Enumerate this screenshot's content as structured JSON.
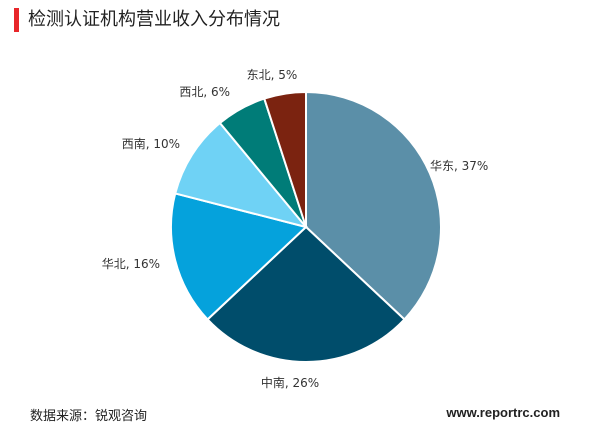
{
  "chart_data": {
    "type": "pie",
    "title": "检测认证机构营业收入分布情况",
    "slices": [
      {
        "name": "华东",
        "value": 37,
        "label": "华东, 37%",
        "color": "#5b8fa8"
      },
      {
        "name": "中南",
        "value": 26,
        "label": "中南, 26%",
        "color": "#004d6b"
      },
      {
        "name": "华北",
        "value": 16,
        "label": "华北, 16%",
        "color": "#05a2dc"
      },
      {
        "name": "西南",
        "value": 10,
        "label": "西南, 10%",
        "color": "#6fd2f5"
      },
      {
        "name": "西北",
        "value": 6,
        "label": "西北, 6%",
        "color": "#007c78"
      },
      {
        "name": "东北",
        "value": 5,
        "label": "东北, 5%",
        "color": "#7b2310"
      }
    ],
    "start": "12 o'clock",
    "direction": "clockwise"
  },
  "footer": {
    "source": "数据来源：锐观咨询",
    "website": "www.reportrc.com"
  }
}
